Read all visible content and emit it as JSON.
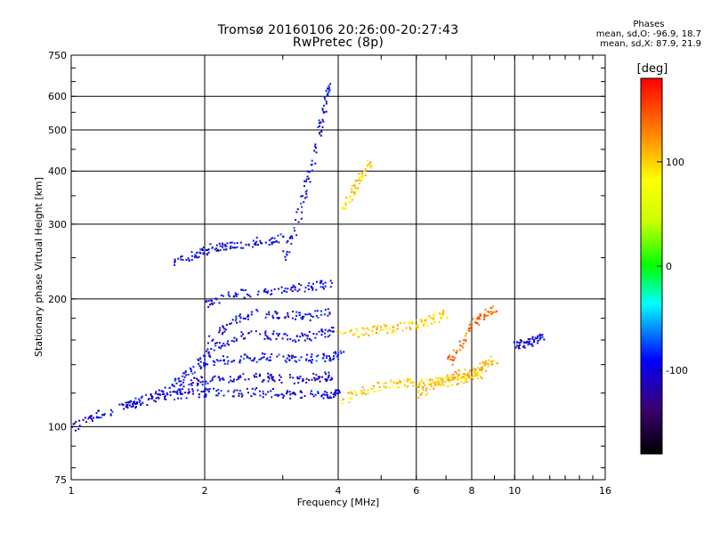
{
  "header": {
    "title": "Tromsø 20160106 20:26:00-20:27:43",
    "subtitle": "RwPretec (8p)"
  },
  "stats": {
    "heading": "Phases",
    "line1": "mean, sd,O: -96.9, 18.7",
    "line2": "mean, sd,X:  87.9, 21.9"
  },
  "colorbar": {
    "label": "[deg]",
    "range": [
      -180,
      180
    ],
    "ticks": [
      100,
      0,
      -100
    ],
    "tick_labels": [
      "100",
      "0",
      "-100"
    ]
  },
  "chart_data": {
    "type": "scatter",
    "xlabel": "Frequency [MHz]",
    "ylabel": "Stationary phase Virtual Height [km]",
    "xscale": "log",
    "yscale": "log",
    "xlim": [
      1,
      16
    ],
    "ylim": [
      75,
      750
    ],
    "x_ticks": [
      1,
      2,
      4,
      6,
      8,
      10,
      16
    ],
    "x_tick_labels": [
      "1",
      "2",
      "4",
      "6",
      "8",
      "10",
      "16"
    ],
    "y_ticks": [
      75,
      100,
      200,
      300,
      400,
      500,
      600,
      750
    ],
    "y_tick_labels": [
      "75",
      "100",
      "200",
      "300",
      "400",
      "500",
      "600",
      "750"
    ],
    "grid": true,
    "color_encodes": "phase [deg]",
    "traces": [
      {
        "x": [
          1.0,
          1.1,
          1.25,
          1.4,
          1.6,
          1.8,
          2.0,
          2.3,
          2.6,
          3.0,
          3.4,
          3.8,
          4.0
        ],
        "y": [
          100,
          106,
          110,
          114,
          118,
          120,
          121,
          121,
          121,
          120,
          119,
          119,
          120
        ],
        "phase": -100
      },
      {
        "x": [
          1.3,
          1.5,
          1.7,
          1.9,
          2.1,
          2.4,
          2.8,
          3.2,
          3.6,
          3.9
        ],
        "y": [
          112,
          118,
          124,
          128,
          130,
          131,
          131,
          130,
          131,
          133
        ],
        "phase": -105
      },
      {
        "x": [
          1.6,
          1.8,
          2.0,
          2.3,
          2.6,
          3.0,
          3.4,
          3.8,
          4.1
        ],
        "y": [
          120,
          132,
          142,
          145,
          146,
          146,
          145,
          146,
          150
        ],
        "phase": -95
      },
      {
        "x": [
          1.9,
          2.1,
          2.4,
          2.8,
          3.2,
          3.6,
          3.9
        ],
        "y": [
          140,
          155,
          165,
          165,
          163,
          165,
          170
        ],
        "phase": -100
      },
      {
        "x": [
          2.0,
          2.3,
          2.6,
          3.0,
          3.4,
          3.8
        ],
        "y": [
          160,
          178,
          185,
          185,
          183,
          187
        ],
        "phase": -98
      },
      {
        "x": [
          2.0,
          2.3,
          2.7,
          3.1,
          3.5,
          3.9
        ],
        "y": [
          195,
          205,
          210,
          212,
          215,
          220
        ],
        "phase": -102
      },
      {
        "x": [
          1.7,
          1.9,
          2.0,
          2.2,
          2.4,
          2.7,
          3.0
        ],
        "y": [
          245,
          255,
          262,
          268,
          270,
          275,
          280
        ],
        "phase": -100
      },
      {
        "x": [
          3.0,
          3.2,
          3.4,
          3.6,
          3.7,
          3.8
        ],
        "y": [
          250,
          300,
          380,
          480,
          560,
          640
        ],
        "phase": -95
      },
      {
        "x": [
          4.1,
          4.3,
          4.5,
          4.7
        ],
        "y": [
          330,
          360,
          390,
          420
        ],
        "phase": 100
      },
      {
        "x": [
          4.0,
          4.5,
          5.0,
          5.5,
          6.0,
          6.5,
          7.0,
          7.5,
          8.0,
          8.5
        ],
        "y": [
          115,
          122,
          125,
          127,
          127,
          128,
          128,
          130,
          132,
          135
        ],
        "phase": 100
      },
      {
        "x": [
          6.0,
          6.5,
          7.0,
          7.5,
          8.0,
          8.5,
          9.0
        ],
        "y": [
          120,
          125,
          130,
          133,
          135,
          140,
          145
        ],
        "phase": 110
      },
      {
        "x": [
          4.0,
          4.5,
          5.0,
          5.5,
          6.0,
          6.5,
          7.0
        ],
        "y": [
          165,
          168,
          170,
          172,
          175,
          180,
          185
        ],
        "phase": 100
      },
      {
        "x": [
          7.0,
          7.5,
          8.0,
          8.5,
          9.0
        ],
        "y": [
          140,
          155,
          175,
          185,
          190
        ],
        "phase": 140
      },
      {
        "x": [
          10.0,
          10.5,
          11.0,
          11.5
        ],
        "y": [
          155,
          158,
          160,
          165
        ],
        "phase": -100
      }
    ]
  }
}
